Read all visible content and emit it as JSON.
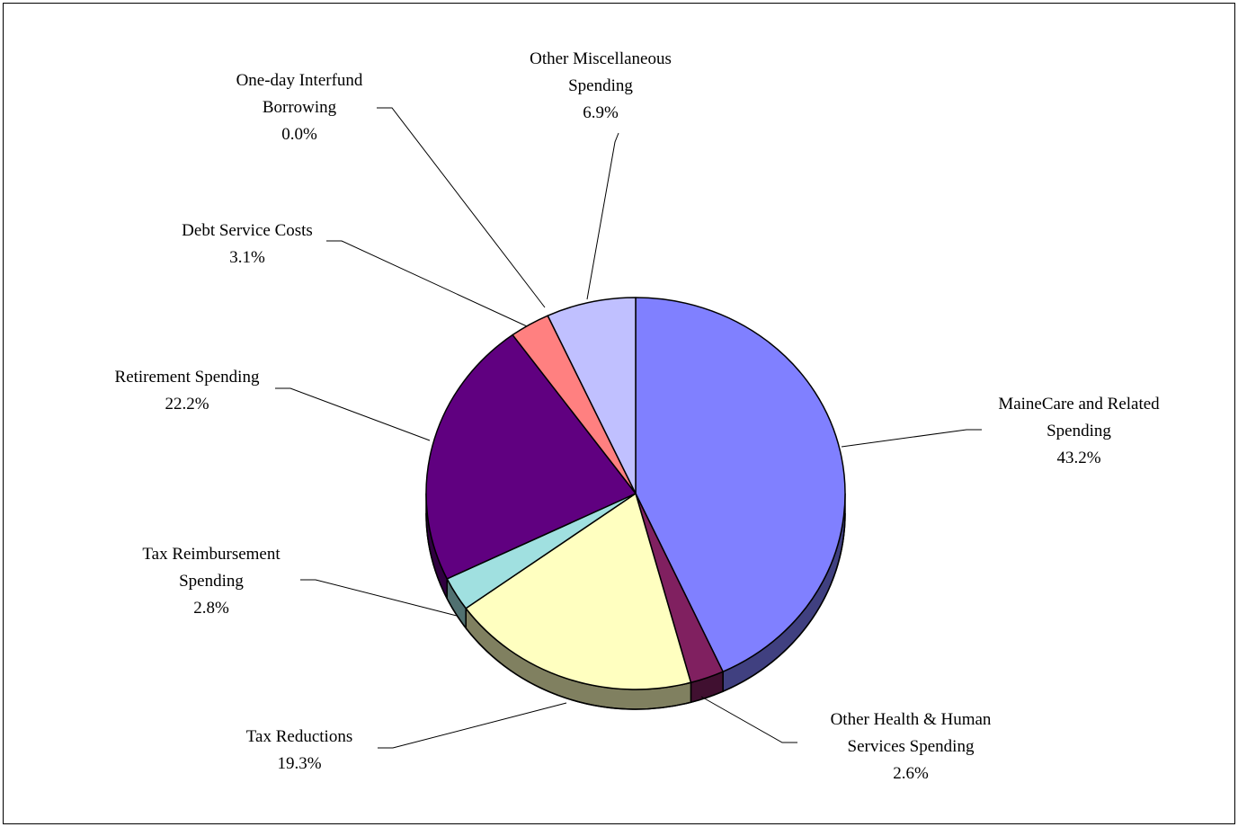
{
  "chart_data": {
    "type": "pie",
    "title": "",
    "style": "3d",
    "start_angle_deg": 0,
    "direction": "clockwise",
    "slices": [
      {
        "label_lines": [
          "MaineCare and Related",
          "Spending"
        ],
        "pct_label": "43.2%",
        "value": 43.2,
        "color": "#8080ff",
        "side_color": "#404080"
      },
      {
        "label_lines": [
          "Other Health & Human",
          "Services Spending"
        ],
        "pct_label": "2.6%",
        "value": 2.6,
        "color": "#802060",
        "side_color": "#401030"
      },
      {
        "label_lines": [
          "Tax Reductions"
        ],
        "pct_label": "19.3%",
        "value": 19.3,
        "color": "#ffffc0",
        "side_color": "#808060"
      },
      {
        "label_lines": [
          "Tax Reimbursement",
          "Spending"
        ],
        "pct_label": "2.8%",
        "value": 2.8,
        "color": "#a0e0e0",
        "side_color": "#507070"
      },
      {
        "label_lines": [
          "Retirement Spending"
        ],
        "pct_label": "22.2%",
        "value": 22.2,
        "color": "#600080",
        "side_color": "#300040"
      },
      {
        "label_lines": [
          "Debt Service Costs"
        ],
        "pct_label": "3.1%",
        "value": 3.1,
        "color": "#ff8080",
        "side_color": "#804040"
      },
      {
        "label_lines": [
          "One-day Interfund",
          "Borrowing"
        ],
        "pct_label": "0.0%",
        "value": 0.0,
        "color": "#ffffff",
        "side_color": "#808080"
      },
      {
        "label_lines": [
          "Other Miscellaneous",
          "Spending"
        ],
        "pct_label": "6.9%",
        "value": 6.9,
        "color": "#c0c0ff",
        "side_color": "#606080"
      }
    ]
  }
}
